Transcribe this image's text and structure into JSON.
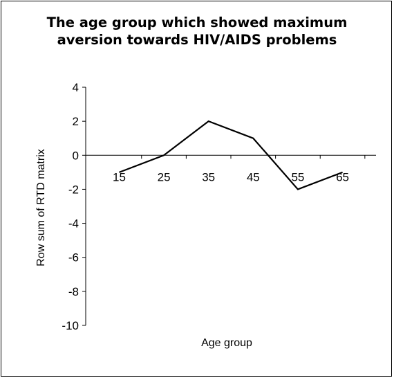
{
  "chart_data": {
    "type": "line",
    "title_lines": [
      "The age group which showed maximum",
      "aversion towards HIV/AIDS problems"
    ],
    "xlabel": "Age group",
    "ylabel": "Row sum of RTD matrix",
    "categories": [
      "15",
      "25",
      "35",
      "45",
      "55",
      "65"
    ],
    "y_ticks": [
      "4",
      "2",
      "0",
      "-2",
      "-4",
      "-6",
      "-8",
      "-10"
    ],
    "series": [
      {
        "values": [
          -1,
          0,
          2,
          1,
          -2,
          -1
        ]
      }
    ],
    "ylim": [
      -10,
      4
    ],
    "grid": false,
    "legend": "none",
    "colors": {
      "line": "#000000",
      "axis": "#000000",
      "background": "#ffffff"
    }
  }
}
